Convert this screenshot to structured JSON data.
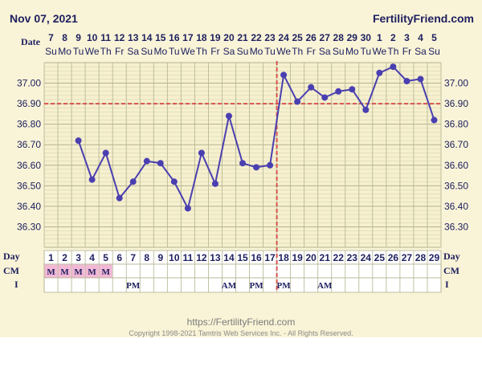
{
  "header": {
    "date": "Nov 07, 2021",
    "site": "FertilityFriend.com",
    "date_row_label": "Date",
    "day_row_label": "Day",
    "cm_row_label": "CM",
    "i_row_label": "I"
  },
  "footer": {
    "url": "https://FertilityFriend.com",
    "copyright": "Copyright 1998-2021 Tamtris Web Services Inc. - All Rights Reserved."
  },
  "colors": {
    "background": "#f9f4d7",
    "grid": "#b3b38f",
    "series": "#4a3fb0",
    "coverline": "#d9534f",
    "menses": "#f2b8d6",
    "text": "#1f2060"
  },
  "chart_data": {
    "type": "line",
    "dates": [
      "7",
      "8",
      "9",
      "10",
      "11",
      "12",
      "13",
      "14",
      "15",
      "16",
      "17",
      "18",
      "19",
      "20",
      "21",
      "22",
      "23",
      "24",
      "25",
      "26",
      "27",
      "28",
      "29",
      "30",
      "1",
      "2",
      "3",
      "4",
      "5"
    ],
    "weekdays": [
      "Su",
      "Mo",
      "Tu",
      "We",
      "Th",
      "Fr",
      "Sa",
      "Su",
      "Mo",
      "Tu",
      "We",
      "Th",
      "Fr",
      "Sa",
      "Su",
      "Mo",
      "Tu",
      "We",
      "Th",
      "Fr",
      "Sa",
      "Su",
      "Mo",
      "Tu",
      "We",
      "Th",
      "Fr",
      "Sa",
      "Su"
    ],
    "cycle_days": [
      "1",
      "2",
      "3",
      "4",
      "5",
      "6",
      "7",
      "8",
      "9",
      "10",
      "11",
      "12",
      "13",
      "14",
      "15",
      "16",
      "17",
      "18",
      "19",
      "20",
      "21",
      "22",
      "23",
      "24",
      "25",
      "26",
      "27",
      "28",
      "29"
    ],
    "temperatures": [
      null,
      null,
      36.72,
      36.53,
      36.66,
      36.44,
      36.52,
      36.62,
      36.61,
      36.52,
      36.39,
      36.66,
      36.51,
      36.84,
      36.61,
      36.59,
      36.6,
      37.04,
      36.91,
      36.98,
      36.93,
      36.96,
      36.97,
      36.87,
      37.05,
      37.08,
      37.01,
      37.02,
      36.82
    ],
    "y_ticks": [
      "37.00",
      "36.90",
      "36.80",
      "36.70",
      "36.60",
      "36.50",
      "36.40",
      "36.30"
    ],
    "ylim": [
      36.2,
      37.1
    ],
    "coverline": 36.9,
    "ovulation_day": 17,
    "cm": [
      "M",
      "M",
      "M",
      "M",
      "M",
      "",
      "",
      "",
      "",
      "",
      "",
      "",
      "",
      "",
      "",
      "",
      "",
      "",
      "",
      "",
      "",
      "",
      "",
      "",
      "",
      "",
      "",
      "",
      ""
    ],
    "intercourse": [
      "",
      "",
      "",
      "",
      "",
      "",
      "PM",
      "",
      "",
      "",
      "",
      "",
      "",
      "AM",
      "",
      "PM",
      "",
      "PM",
      "",
      "",
      "AM",
      "",
      "",
      "",
      "",
      "",
      "",
      "",
      ""
    ],
    "grid": true
  }
}
